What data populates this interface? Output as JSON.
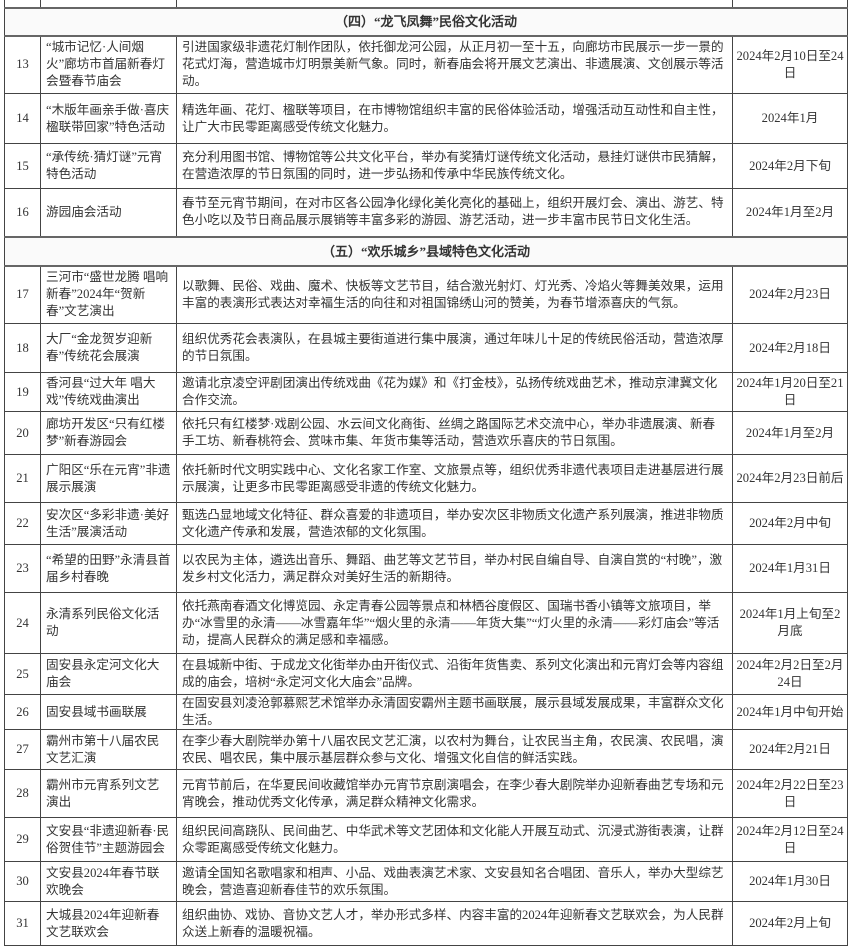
{
  "sections": [
    {
      "title": "（四）“龙飞凤舞”民俗文化活动",
      "rows": [
        {
          "no": "13",
          "name": "“城市记忆·人间烟火”廊坊市首届新春灯会暨春节庙会",
          "desc": "引进国家级非遗花灯制作团队，依托御龙河公园，从正月初一至十五，向廊坊市民展示一步一景的花式灯海，营造城市灯明景美新气象。同时，新春庙会将开展文艺演出、非遗展演、文创展示等活动。",
          "date": "2024年2月10日至24日"
        },
        {
          "no": "14",
          "name": "“木版年画亲手做·喜庆楹联带回家”特色活动",
          "desc": "精选年画、花灯、楹联等项目，在市博物馆组织丰富的民俗体验活动，增强活动互动性和自主性，让广大市民零距离感受传统文化魅力。",
          "date": "2024年1月"
        },
        {
          "no": "15",
          "name": "“承传统·猜灯谜”元宵特色活动",
          "desc": "充分利用图书馆、博物馆等公共文化平台，举办有奖猜灯谜传统文化活动，悬挂灯谜供市民猜解，在营造浓厚的节日氛围的同时，进一步弘扬和传承中华民族传统文化。",
          "date": "2024年2月下旬"
        },
        {
          "no": "16",
          "name": "游园庙会活动",
          "desc": "春节至元宵节期间，在对市区各公园净化绿化美化亮化的基础上，组织开展灯会、演出、游艺、特色小吃以及节日商品展示展销等丰富多彩的游园、游艺活动，进一步丰富市民节日文化生活。",
          "date": "2024年1月至2月"
        }
      ]
    },
    {
      "title": "（五）“欢乐城乡”县域特色文化活动",
      "rows": [
        {
          "no": "17",
          "name": "三河市“盛世龙腾 唱响新春”2024年“贺新春”文艺演出",
          "desc": "以歌舞、民俗、戏曲、魔术、快板等文艺节目，结合激光射灯、灯光秀、冷焰火等舞美效果，运用丰富的表演形式表达对幸福生活的向往和对祖国锦绣山河的赞美，为春节增添喜庆的气氛。",
          "date": "2024年2月23日"
        },
        {
          "no": "18",
          "name": "大厂“金龙贺岁迎新春”传统花会展演",
          "desc": "组织优秀花会表演队，在县城主要街道进行集中展演，通过年味儿十足的传统民俗活动，营造浓厚的节日氛围。",
          "date": "2024年2月18日"
        },
        {
          "no": "19",
          "name": "香河县“过大年 唱大戏”传统戏曲演出",
          "desc": "邀请北京凌空评剧团演出传统戏曲《花为媒》和《打金枝》，弘扬传统戏曲艺术，推动京津冀文化合作交流。",
          "date": "2024年1月20日至21日"
        },
        {
          "no": "20",
          "name": "廊坊开发区“只有红楼梦”新春游园会",
          "desc": "依托只有红楼梦·戏剧公园、水云间文化商街、丝绸之路国际艺术交流中心，举办非遗展演、新春手工坊、新春桃符会、赏味市集、年货市集等活动，营造欢乐喜庆的节日氛围。",
          "date": "2024年1月至2月"
        },
        {
          "no": "21",
          "name": "广阳区“乐在元宵”非遗展示展演",
          "desc": "依托新时代文明实践中心、文化名家工作室、文旅景点等，组织优秀非遗代表项目走进基层进行展示展演，让更多市民零距离感受非遗的传统文化魅力。",
          "date": "2024年2月23日前后"
        },
        {
          "no": "22",
          "name": "安次区“多彩非遗·美好生活”展演活动",
          "desc": "甄选凸显地域文化特征、群众喜爱的非遗项目，举办安次区非物质文化遗产系列展演，推进非物质文化遗产传承和发展，营造浓郁的文化氛围。",
          "date": "2024年2月中旬"
        },
        {
          "no": "23",
          "name": "“希望的田野”永清县首届乡村春晚",
          "desc": "以农民为主体，遴选出音乐、舞蹈、曲艺等文艺节目，举办村民自编自导、自演自赏的“村晚”，激发乡村文化活力，满足群众对美好生活的新期待。",
          "date": "2024年1月31日"
        },
        {
          "no": "24",
          "name": "永清系列民俗文化活动",
          "desc": "依托燕南春酒文化博览园、永定青春公园等景点和林栖谷度假区、国瑞书香小镇等文旅项目，举办“冰雪里的永清——冰雪嘉年华”“烟火里的永清——年货大集”“灯火里的永清——彩灯庙会”等活动，提高人民群众的满足感和幸福感。",
          "date": "2024年1月上旬至2月底"
        },
        {
          "no": "25",
          "name": "固安县永定河文化大庙会",
          "desc": "在县城新中街、于成龙文化街举办由开街仪式、沿街年货售卖、系列文化演出和元宵灯会等内容组成的庙会，培树“永定河文化大庙会”品牌。",
          "date": "2024年2月2日至2月24日"
        },
        {
          "no": "26",
          "name": "固安县域书画联展",
          "desc": "在固安县刘凌沧郭慕熙艺术馆举办永清固安霸州主题书画联展，展示县域发展成果，丰富群众文化生活。",
          "date": "2024年1月中旬开始"
        },
        {
          "no": "27",
          "name": "霸州市第十八届农民文艺汇演",
          "desc": "在李少春大剧院举办第十八届农民文艺汇演，以农村为舞台，让农民当主角，农民演、农民唱，演农民、唱农民，集中展示基层群众参与文化、增强文化自信的鲜活实践。",
          "date": "2024年2月21日"
        },
        {
          "no": "28",
          "name": "霸州市元宵系列文艺演出",
          "desc": "元宵节前后，在华夏民间收藏馆举办元宵节京剧演唱会，在李少春大剧院举办迎新春曲艺专场和元宵晚会，推动优秀文化传承，满足群众精神文化需求。",
          "date": "2024年2月22日至23日"
        },
        {
          "no": "29",
          "name": "文安县“非遗迎新春·民俗贺佳节”主题游园会",
          "desc": "组织民间高跷队、民间曲艺、中华武术等文艺团体和文化能人开展互动式、沉浸式游街表演，让群众零距离感受传统文化魅力。",
          "date": "2024年2月12日至24日"
        },
        {
          "no": "30",
          "name": "文安县2024年春节联欢晚会",
          "desc": "邀请全国知名歌唱家和相声、小品、戏曲表演艺术家、文安县知名合唱团、音乐人，举办大型综艺晚会，营造喜迎新春佳节的欢乐氛围。",
          "date": "2024年1月30日"
        },
        {
          "no": "31",
          "name": "大城县2024年迎新春文艺联欢会",
          "desc": "组织曲协、戏协、音协文艺人才，举办形式多样、内容丰富的2024年迎新春文艺联欢会，为人民群众送上新春的温暖祝福。",
          "date": "2024年2月上旬"
        }
      ]
    }
  ]
}
